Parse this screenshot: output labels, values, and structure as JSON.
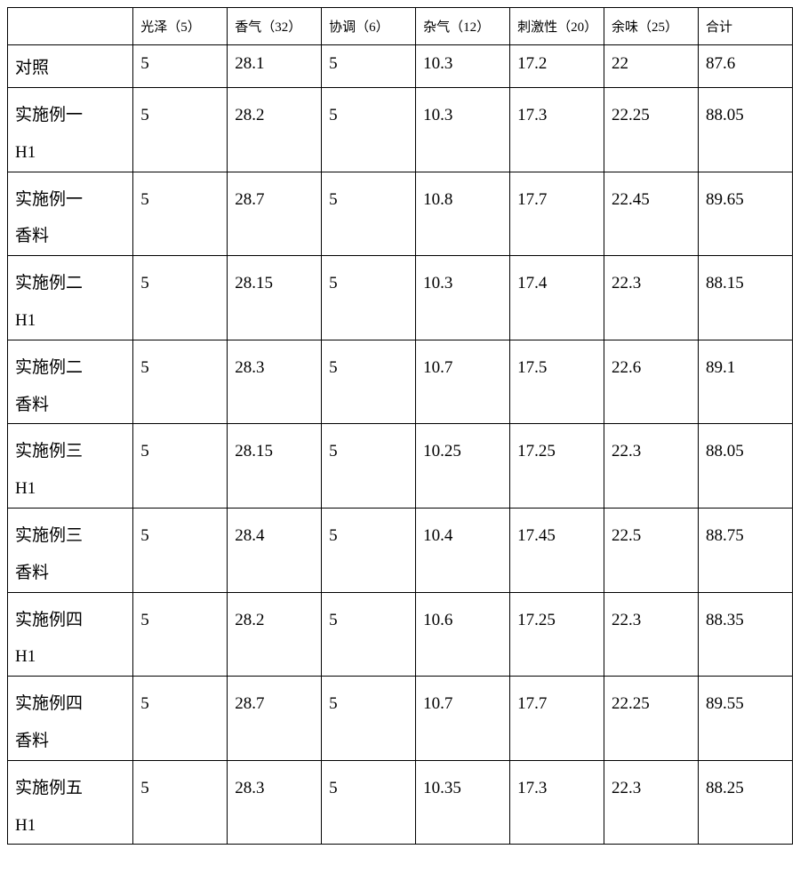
{
  "table": {
    "type": "table",
    "border_color": "#000000",
    "background_color": "#ffffff",
    "header_fontsize": 15,
    "cell_fontsize": 19,
    "columns": [
      "",
      "光泽（5）",
      "香气（32）",
      "协调（6）",
      "杂气（12）",
      "刺激性（20）",
      "余味（25）",
      "合计"
    ],
    "column_widths": [
      "16%",
      "12%",
      "12%",
      "12%",
      "12%",
      "12%",
      "12%",
      "12%"
    ],
    "rows": [
      {
        "label": "对照",
        "double": false,
        "values": [
          "5",
          "28.1",
          "5",
          "10.3",
          "17.2",
          "22",
          "87.6"
        ]
      },
      {
        "label": "实施例一H1",
        "double": true,
        "values": [
          "5",
          "28.2",
          "5",
          "10.3",
          "17.3",
          "22.25",
          "88.05"
        ]
      },
      {
        "label": "实施例一香料",
        "double": true,
        "values": [
          "5",
          "28.7",
          "5",
          "10.8",
          "17.7",
          "22.45",
          "89.65"
        ]
      },
      {
        "label": "实施例二H1",
        "double": true,
        "values": [
          "5",
          "28.15",
          "5",
          "10.3",
          "17.4",
          "22.3",
          "88.15"
        ]
      },
      {
        "label": "实施例二香料",
        "double": true,
        "values": [
          "5",
          "28.3",
          "5",
          "10.7",
          "17.5",
          "22.6",
          "89.1"
        ]
      },
      {
        "label": "实施例三H1",
        "double": true,
        "values": [
          "5",
          "28.15",
          "5",
          "10.25",
          "17.25",
          "22.3",
          "88.05"
        ]
      },
      {
        "label": "实施例三香料",
        "double": true,
        "values": [
          "5",
          "28.4",
          "5",
          "10.4",
          "17.45",
          "22.5",
          "88.75"
        ]
      },
      {
        "label": "实施例四H1",
        "double": true,
        "values": [
          "5",
          "28.2",
          "5",
          "10.6",
          "17.25",
          "22.3",
          "88.35"
        ]
      },
      {
        "label": "实施例四香料",
        "double": true,
        "values": [
          "5",
          "28.7",
          "5",
          "10.7",
          "17.7",
          "22.25",
          "89.55"
        ]
      },
      {
        "label": "实施例五H1",
        "double": true,
        "values": [
          "5",
          "28.3",
          "5",
          "10.35",
          "17.3",
          "22.3",
          "88.25"
        ]
      }
    ]
  }
}
